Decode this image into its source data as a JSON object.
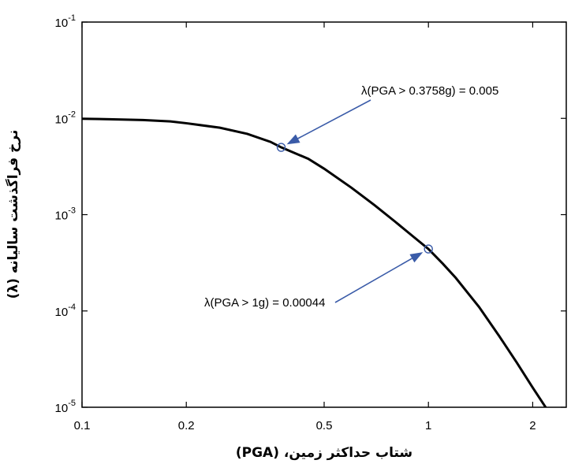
{
  "chart_data": {
    "type": "line",
    "xlabel": "شتاب حداکثر زمین، (PGA)",
    "ylabel": "نرخ فراگذشت سالیانه (λ)",
    "x_scale": "log",
    "y_scale": "log",
    "xlim": [
      0.1,
      2.5
    ],
    "ylim": [
      1e-05,
      0.1
    ],
    "grid": false,
    "x_ticks": [
      {
        "value": 0.1,
        "label": "0.1"
      },
      {
        "value": 0.2,
        "label": "0.2"
      },
      {
        "value": 0.5,
        "label": "0.5"
      },
      {
        "value": 1,
        "label": "1"
      },
      {
        "value": 2,
        "label": "2"
      }
    ],
    "y_ticks": [
      {
        "value": 0.1,
        "base": "10",
        "exp": "-1"
      },
      {
        "value": 0.01,
        "base": "10",
        "exp": "-2"
      },
      {
        "value": 0.001,
        "base": "10",
        "exp": "-3"
      },
      {
        "value": 0.0001,
        "base": "10",
        "exp": "-4"
      },
      {
        "value": 1e-05,
        "base": "10",
        "exp": "-5"
      }
    ],
    "series": [
      {
        "x": [
          0.1,
          0.12,
          0.15,
          0.18,
          0.2,
          0.25,
          0.3,
          0.35,
          0.3758,
          0.45,
          0.5,
          0.6,
          0.7,
          0.8,
          0.9,
          1.0,
          1.1,
          1.2,
          1.4,
          1.6,
          1.8,
          2.0,
          2.2
        ],
        "y": [
          0.0099,
          0.0098,
          0.0096,
          0.0093,
          0.0089,
          0.008,
          0.0069,
          0.0057,
          0.005,
          0.0038,
          0.003,
          0.0019,
          0.00125,
          0.00085,
          0.0006,
          0.00044,
          0.00031,
          0.00022,
          0.00011,
          5.5e-05,
          2.9e-05,
          1.6e-05,
          9.5e-06
        ]
      }
    ],
    "annotations": [
      {
        "label": "λ(PGA > 0.3758g) = 0.005",
        "x": 0.3758,
        "y": 0.005
      },
      {
        "label": "λ(PGA > 1g) = 0.00044",
        "x": 1.0,
        "y": 0.00044
      }
    ]
  }
}
